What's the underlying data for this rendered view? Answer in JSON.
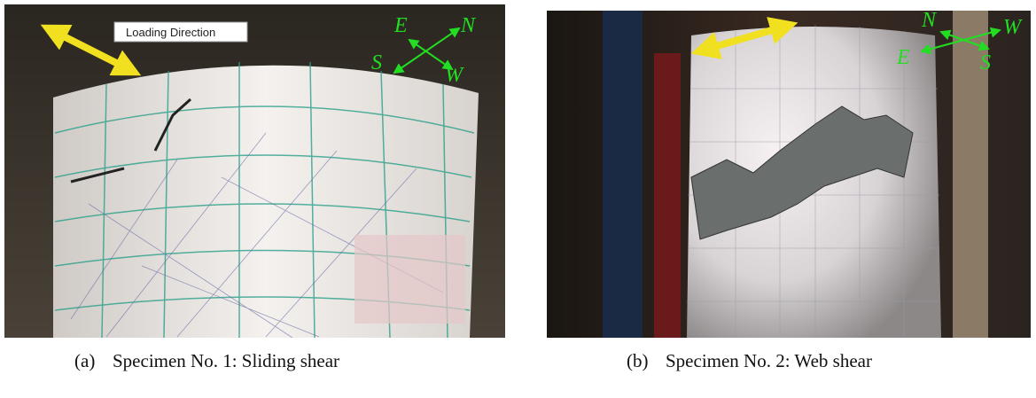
{
  "panels": [
    {
      "label_box": "Loading Direction",
      "compass": {
        "E": "E",
        "N": "N",
        "S": "S",
        "W": "W"
      },
      "tag": "(a)",
      "caption": "Specimen No. 1: Sliding shear"
    },
    {
      "compass": {
        "N": "N",
        "W": "W",
        "E": "E",
        "S": "S"
      },
      "tag": "(b)",
      "caption": "Specimen No. 2: Web shear"
    }
  ]
}
